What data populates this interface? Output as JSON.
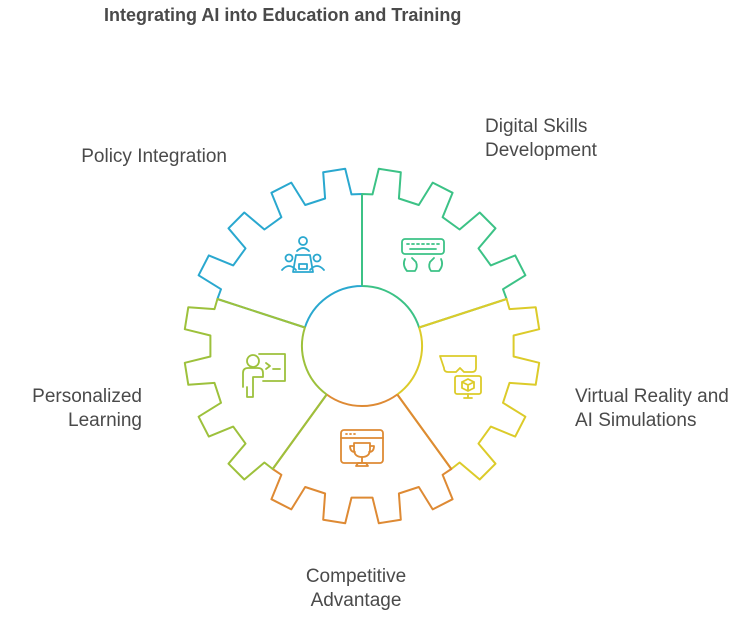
{
  "title": "Integrating AI into Education and Training",
  "segments": [
    {
      "line1": "Policy Integration",
      "line2": "",
      "color": "#2aa8cf",
      "icon": "meeting-people-icon"
    },
    {
      "line1": "Digital Skills",
      "line2": "Development",
      "color": "#3cc286",
      "icon": "keyboard-hands-icon"
    },
    {
      "line1": "Virtual Reality and",
      "line2": "AI Simulations",
      "color": "#dccb2a",
      "icon": "vr-headset-cube-icon"
    },
    {
      "line1": "Competitive",
      "line2": "Advantage",
      "color": "#de8a34",
      "icon": "trophy-browser-icon"
    },
    {
      "line1": "Personalized",
      "line2": "Learning",
      "color": "#9dc13c",
      "icon": "person-whiteboard-icon"
    }
  ]
}
